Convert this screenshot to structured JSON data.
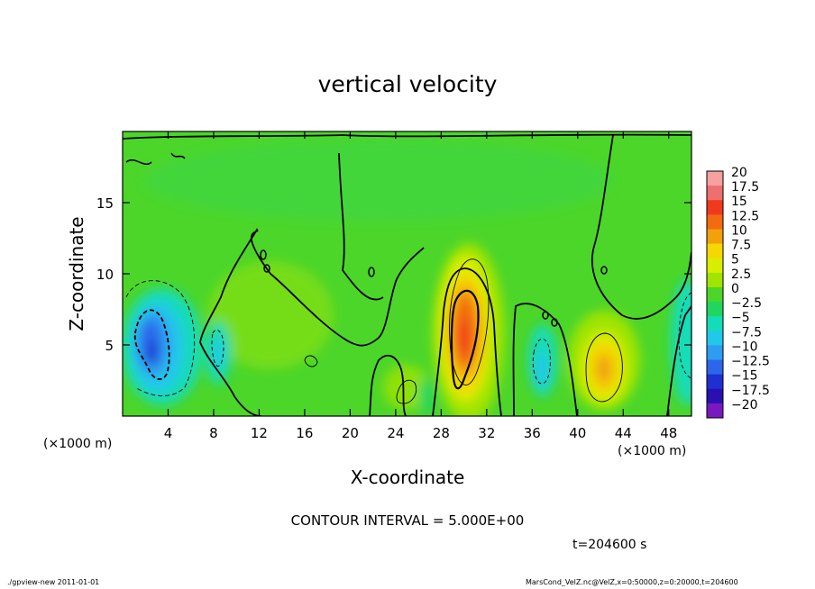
{
  "chart_data": {
    "type": "heatmap",
    "title": "vertical velocity",
    "xlabel": "X-coordinate",
    "ylabel": "Z-coordinate",
    "x_unit_note": "(×1000 m)",
    "y_unit_note": "(×1000 m)",
    "xlim": [
      0,
      50
    ],
    "ylim": [
      0,
      20
    ],
    "x_ticks": [
      4,
      8,
      12,
      16,
      20,
      24,
      28,
      32,
      36,
      40,
      44,
      48
    ],
    "y_ticks": [
      5,
      10,
      15
    ],
    "contour_interval_text": "CONTOUR INTERVAL = 5.000E+00",
    "time_text": "t=204600 s",
    "colorbar": {
      "labels": [
        "20",
        "17.5",
        "15",
        "12.5",
        "10",
        "7.5",
        "5",
        "2.5",
        "0",
        "−2.5",
        "−5",
        "−7.5",
        "−10",
        "−12.5",
        "−15",
        "−17.5",
        "−20"
      ],
      "colors": [
        "#f6a0a0",
        "#ee6f6f",
        "#f03a1e",
        "#f36a10",
        "#f2a10c",
        "#f5d800",
        "#d8ee00",
        "#a0e400",
        "#4cd62a",
        "#1fd660",
        "#14dcb8",
        "#22c8ea",
        "#2e9cf0",
        "#2c66ea",
        "#1e30d0",
        "#2a10b0",
        "#7a18c0"
      ]
    },
    "features": [
      {
        "type": "updraft",
        "x_center": 30,
        "z_center": 6.5,
        "peak": 15
      },
      {
        "type": "updraft",
        "x_center": 42.5,
        "z_center": 4,
        "peak": 10
      },
      {
        "type": "downdraft",
        "x_center": 3,
        "z_center": 4.5,
        "peak": -12.5
      },
      {
        "type": "downdraft",
        "x_center": 8.5,
        "z_center": 4.5,
        "peak": -5
      },
      {
        "type": "downdraft",
        "x_center": 37,
        "z_center": 3.5,
        "peak": -5
      },
      {
        "type": "downdraft",
        "x_center": 49.5,
        "z_center": 6,
        "peak": -5
      }
    ]
  },
  "footer": {
    "left": "./gpview-new 2011-01-01",
    "right": "MarsCond_VelZ.nc@VelZ,x=0:50000,z=0:20000,t=204600"
  }
}
